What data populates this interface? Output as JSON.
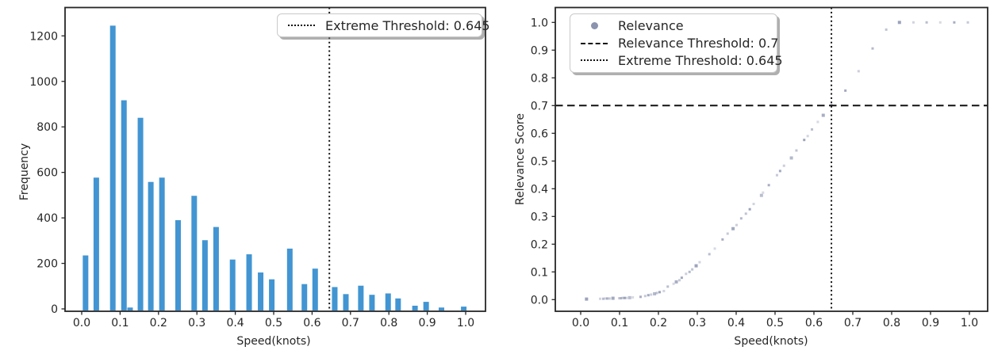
{
  "figure": {
    "background": "#ffffff",
    "thresholds": {
      "extreme_speed": 0.645,
      "relevance_score": 0.7
    }
  },
  "colors": {
    "bar": "#4295d2",
    "scatter_point": "#8b93af",
    "threshold_line": "#111111",
    "spine": "#262626",
    "tick_label": "#262626"
  },
  "chart_data": [
    {
      "type": "bar",
      "panel": "left",
      "title": "",
      "xlabel": "Speed(knots)",
      "ylabel": "Frequency",
      "x_ticks": [
        0.0,
        0.1,
        0.2,
        0.3,
        0.4,
        0.5,
        0.6,
        0.7,
        0.8,
        0.9,
        1.0
      ],
      "y_ticks": [
        0,
        200,
        400,
        600,
        800,
        1000,
        1200
      ],
      "xlim": [
        -0.045,
        1.052
      ],
      "ylim": [
        0,
        1328
      ],
      "grid": false,
      "bars": {
        "x": [
          0.01,
          0.038,
          0.081,
          0.11,
          0.126,
          0.153,
          0.18,
          0.209,
          0.251,
          0.293,
          0.321,
          0.35,
          0.393,
          0.436,
          0.466,
          0.495,
          0.542,
          0.58,
          0.608,
          0.659,
          0.688,
          0.727,
          0.756,
          0.798,
          0.824,
          0.868,
          0.897,
          0.937,
          0.995
        ],
        "frequency": [
          235,
          577,
          1245,
          917,
          6,
          840,
          558,
          577,
          390,
          497,
          302,
          360,
          217,
          240,
          160,
          130,
          265,
          109,
          177,
          96,
          65,
          102,
          62,
          68,
          46,
          14,
          31,
          6,
          10
        ]
      },
      "threshold_lines": [
        {
          "axis": "x",
          "value": 0.645,
          "style": "dotted",
          "label": "Extreme Threshold: 0.645"
        }
      ],
      "legend": {
        "position": "upper right",
        "items": [
          {
            "marker": "dotted-line",
            "label": "Extreme Threshold: 0.645"
          }
        ]
      }
    },
    {
      "type": "scatter",
      "panel": "right",
      "title": "",
      "xlabel": "Speed(knots)",
      "ylabel": "Relevance Score",
      "x_ticks": [
        0.0,
        0.1,
        0.2,
        0.3,
        0.4,
        0.5,
        0.6,
        0.7,
        0.8,
        0.9,
        1.0
      ],
      "y_ticks": [
        0.0,
        0.1,
        0.2,
        0.3,
        0.4,
        0.5,
        0.6,
        0.7,
        0.8,
        0.9,
        1.0
      ],
      "xlim": [
        -0.065,
        1.047
      ],
      "ylim": [
        -0.042,
        1.054
      ],
      "grid": false,
      "series_name": "Relevance",
      "points": [
        [
          0.015,
          0.002
        ],
        [
          0.05,
          0.003
        ],
        [
          0.058,
          0.003
        ],
        [
          0.063,
          0.004
        ],
        [
          0.068,
          0.004
        ],
        [
          0.074,
          0.004
        ],
        [
          0.083,
          0.005
        ],
        [
          0.099,
          0.005
        ],
        [
          0.103,
          0.005
        ],
        [
          0.108,
          0.006
        ],
        [
          0.113,
          0.006
        ],
        [
          0.118,
          0.006
        ],
        [
          0.126,
          0.007
        ],
        [
          0.134,
          0.008
        ],
        [
          0.154,
          0.01
        ],
        [
          0.166,
          0.013
        ],
        [
          0.174,
          0.016
        ],
        [
          0.181,
          0.018
        ],
        [
          0.19,
          0.021
        ],
        [
          0.196,
          0.024
        ],
        [
          0.203,
          0.027
        ],
        [
          0.214,
          0.031
        ],
        [
          0.224,
          0.047
        ],
        [
          0.239,
          0.057
        ],
        [
          0.246,
          0.064
        ],
        [
          0.254,
          0.07
        ],
        [
          0.26,
          0.079
        ],
        [
          0.271,
          0.093
        ],
        [
          0.28,
          0.1
        ],
        [
          0.287,
          0.109
        ],
        [
          0.297,
          0.122
        ],
        [
          0.306,
          0.135
        ],
        [
          0.331,
          0.164
        ],
        [
          0.345,
          0.184
        ],
        [
          0.365,
          0.217
        ],
        [
          0.378,
          0.238
        ],
        [
          0.392,
          0.256
        ],
        [
          0.401,
          0.269
        ],
        [
          0.413,
          0.293
        ],
        [
          0.425,
          0.31
        ],
        [
          0.435,
          0.326
        ],
        [
          0.445,
          0.345
        ],
        [
          0.465,
          0.376
        ],
        [
          0.469,
          0.386
        ],
        [
          0.484,
          0.413
        ],
        [
          0.505,
          0.449
        ],
        [
          0.513,
          0.464
        ],
        [
          0.523,
          0.483
        ],
        [
          0.542,
          0.511
        ],
        [
          0.555,
          0.538
        ],
        [
          0.575,
          0.576
        ],
        [
          0.584,
          0.59
        ],
        [
          0.595,
          0.614
        ],
        [
          0.61,
          0.641
        ],
        [
          0.624,
          0.665
        ],
        [
          0.645,
          0.703
        ],
        [
          0.681,
          0.754
        ],
        [
          0.715,
          0.824
        ],
        [
          0.751,
          0.906
        ],
        [
          0.786,
          0.974
        ],
        [
          0.82,
          1.0
        ],
        [
          0.856,
          1.0
        ],
        [
          0.89,
          1.0
        ],
        [
          0.925,
          1.0
        ],
        [
          0.961,
          1.0
        ],
        [
          0.996,
          1.0
        ]
      ],
      "threshold_lines": [
        {
          "axis": "y",
          "value": 0.7,
          "style": "dashed",
          "label": "Relevance Threshold: 0.7"
        },
        {
          "axis": "x",
          "value": 0.645,
          "style": "dotted",
          "label": "Extreme Threshold: 0.645"
        }
      ],
      "legend": {
        "position": "upper left",
        "items": [
          {
            "marker": "dot",
            "label": "Relevance"
          },
          {
            "marker": "dashed-line",
            "label": "Relevance Threshold: 0.7"
          },
          {
            "marker": "dotted-line",
            "label": "Extreme Threshold: 0.645"
          }
        ]
      }
    }
  ]
}
